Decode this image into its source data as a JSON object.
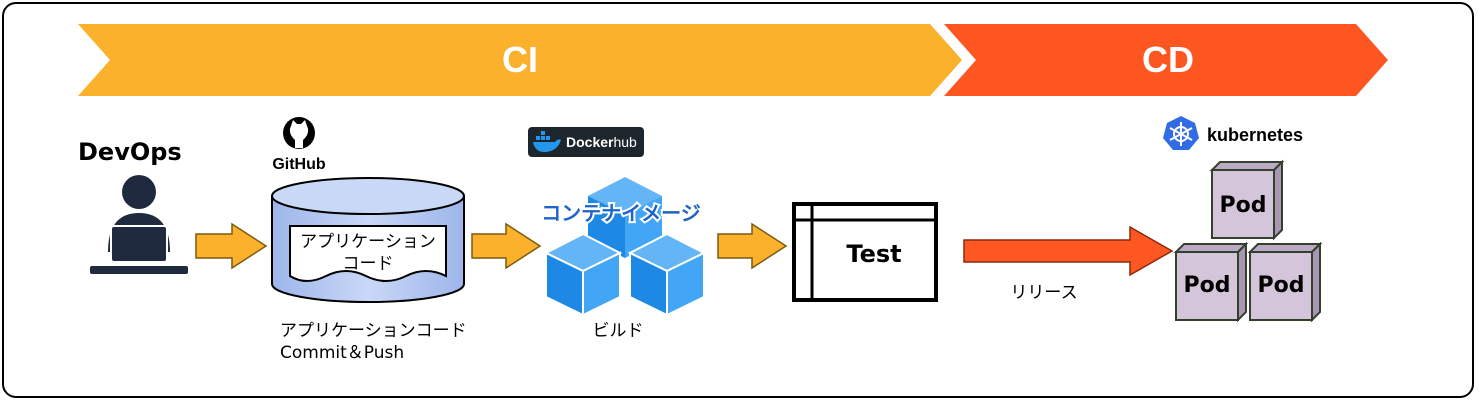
{
  "phases": {
    "ci": "CI",
    "cd": "CD"
  },
  "actor": {
    "title": "DevOps",
    "icon": "person-at-laptop-icon"
  },
  "github": {
    "brand": "GitHub",
    "doc_line1": "アプリケーション",
    "doc_line2": "コード",
    "caption_line1": "アプリケーションコード",
    "caption_line2": "Commit＆Push"
  },
  "dockerhub": {
    "brand_a": "Docker",
    "brand_b": "hub",
    "image_label": "コンテナイメージ",
    "caption": "ビルド"
  },
  "test": {
    "label": "Test"
  },
  "release": {
    "label": "リリース"
  },
  "kubernetes": {
    "brand": "kubernetes",
    "pods": [
      "Pod",
      "Pod",
      "Pod"
    ]
  },
  "colors": {
    "ci": "#FBB12B",
    "cd": "#FE5620",
    "arrow": "#FBB12B",
    "release_arrow": "#FF5722",
    "cube": "#2196F3",
    "pod_fill": "#D4C5DB",
    "pod_stroke": "#33402E",
    "docker_bg": "#1D262D",
    "k8s": "#326CE5"
  }
}
